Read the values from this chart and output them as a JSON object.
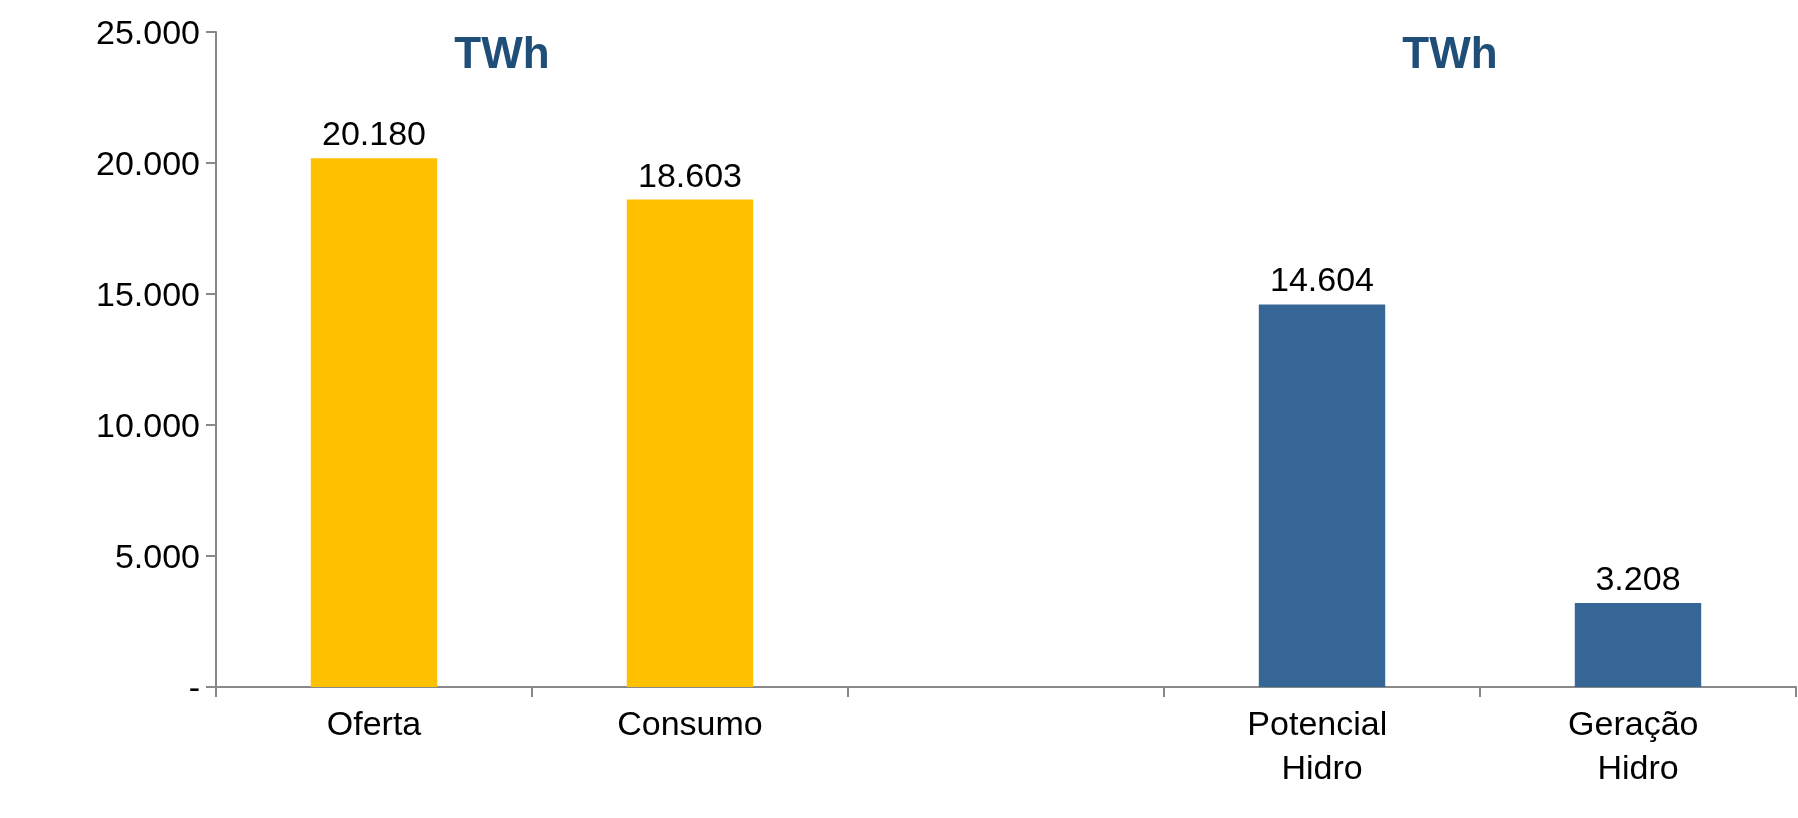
{
  "chart_data": {
    "type": "bar",
    "categories": [
      "Oferta",
      "Consumo",
      null,
      "Potencial Hidro",
      "Geração Hidro"
    ],
    "values": [
      20180,
      18603,
      null,
      14604,
      3208
    ],
    "colors": [
      "#ffc000",
      "#ffc000",
      null,
      "#356696",
      "#356696"
    ],
    "value_labels": [
      "20.180",
      "18.603",
      null,
      "14.604",
      "3.208"
    ],
    "ylim": [
      0,
      25000
    ],
    "yticks": [
      {
        "value": 0,
        "label": "-"
      },
      {
        "value": 5000,
        "label": "5.000"
      },
      {
        "value": 10000,
        "label": "10.000"
      },
      {
        "value": 15000,
        "label": "15.000"
      },
      {
        "value": 20000,
        "label": "20.000"
      },
      {
        "value": 25000,
        "label": "25.000"
      }
    ],
    "annotations": [
      "TWh",
      "TWh"
    ],
    "grid": false
  }
}
